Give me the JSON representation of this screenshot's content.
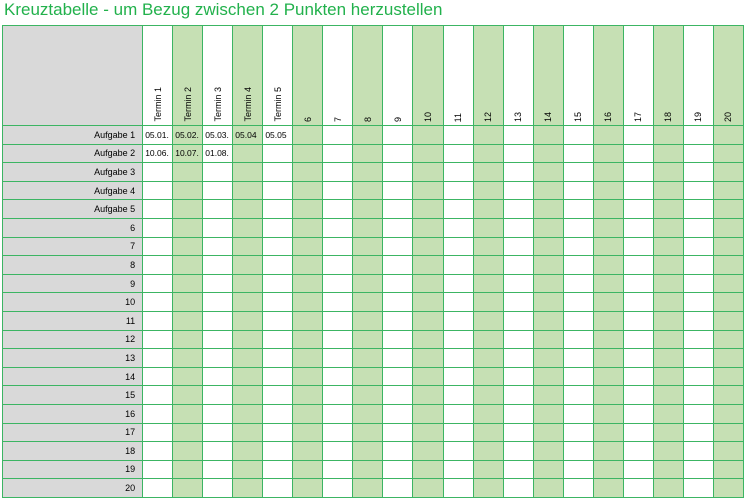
{
  "title": "Kreuztabelle - um Bezug zwischen 2 Punkten herzustellen",
  "colors": {
    "accent": "#22b14c",
    "header_gray": "#d9d9d9",
    "band_green": "#c6e0b4",
    "grid": "#3cb563"
  },
  "columns": [
    "Termin 1",
    "Termin 2",
    "Termin 3",
    "Termin 4",
    "Termin 5",
    "6",
    "7",
    "8",
    "9",
    "10",
    "11",
    "12",
    "13",
    "14",
    "15",
    "16",
    "17",
    "18",
    "19",
    "20"
  ],
  "rows": [
    "Aufgabe 1",
    "Aufgabe 2",
    "Aufgabe 3",
    "Aufgabe 4",
    "Aufgabe 5",
    "6",
    "7",
    "8",
    "9",
    "10",
    "11",
    "12",
    "13",
    "14",
    "15",
    "16",
    "17",
    "18",
    "19",
    "20"
  ],
  "cells": [
    [
      "05.01.",
      "05.02.",
      "05.03.",
      "05.04",
      "05.05",
      "",
      "",
      "",
      "",
      "",
      "",
      "",
      "",
      "",
      "",
      "",
      "",
      "",
      "",
      ""
    ],
    [
      "10.06.",
      "10.07.",
      "01.08.",
      "",
      "",
      "",
      "",
      "",
      "",
      "",
      "",
      "",
      "",
      "",
      "",
      "",
      "",
      "",
      "",
      ""
    ]
  ]
}
